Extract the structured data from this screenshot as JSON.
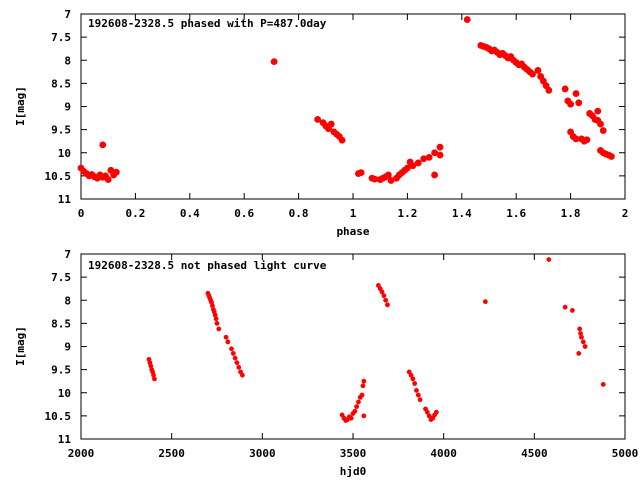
{
  "chart_data": [
    {
      "type": "scatter",
      "title": "192608-2328.5 phased with P=487.0day",
      "xlabel": "phase",
      "ylabel": "I[mag]",
      "xlim": [
        0,
        2
      ],
      "ylim": [
        11,
        7
      ],
      "y_inverted": true,
      "xticks": [
        "0",
        "0.2",
        "0.4",
        "0.6",
        "0.8",
        "1",
        "1.2",
        "1.4",
        "1.6",
        "1.8",
        "2"
      ],
      "yticks": [
        "7",
        "7.5",
        "8",
        "8.5",
        "9",
        "9.5",
        "10",
        "10.5",
        "11"
      ],
      "grid": false,
      "legend": "none",
      "marker_color": "#ff0000",
      "series": [
        {
          "points": [
            [
              0.0,
              10.33
            ],
            [
              0.01,
              10.4
            ],
            [
              0.02,
              10.45
            ],
            [
              0.03,
              10.5
            ],
            [
              0.04,
              10.47
            ],
            [
              0.05,
              10.52
            ],
            [
              0.06,
              10.55
            ],
            [
              0.07,
              10.48
            ],
            [
              0.08,
              10.53
            ],
            [
              0.09,
              10.5
            ],
            [
              0.08,
              9.83
            ],
            [
              0.1,
              10.58
            ],
            [
              0.11,
              10.38
            ],
            [
              0.12,
              10.48
            ],
            [
              0.13,
              10.42
            ],
            [
              0.71,
              8.03
            ],
            [
              0.87,
              9.28
            ],
            [
              0.89,
              9.35
            ],
            [
              0.9,
              9.42
            ],
            [
              0.91,
              9.48
            ],
            [
              0.92,
              9.38
            ],
            [
              0.93,
              9.55
            ],
            [
              0.94,
              9.6
            ],
            [
              0.95,
              9.65
            ],
            [
              0.96,
              9.73
            ],
            [
              1.02,
              10.45
            ],
            [
              1.03,
              10.43
            ],
            [
              1.07,
              10.55
            ],
            [
              1.08,
              10.57
            ],
            [
              1.1,
              10.58
            ],
            [
              1.11,
              10.55
            ],
            [
              1.12,
              10.52
            ],
            [
              1.13,
              10.48
            ],
            [
              1.14,
              10.6
            ],
            [
              1.16,
              10.55
            ],
            [
              1.17,
              10.48
            ],
            [
              1.18,
              10.43
            ],
            [
              1.19,
              10.38
            ],
            [
              1.2,
              10.33
            ],
            [
              1.21,
              10.2
            ],
            [
              1.22,
              10.28
            ],
            [
              1.24,
              10.22
            ],
            [
              1.26,
              10.13
            ],
            [
              1.28,
              10.1
            ],
            [
              1.3,
              10.0
            ],
            [
              1.3,
              10.48
            ],
            [
              1.32,
              9.88
            ],
            [
              1.32,
              10.05
            ],
            [
              1.42,
              7.12
            ],
            [
              1.47,
              7.68
            ],
            [
              1.48,
              7.7
            ],
            [
              1.49,
              7.72
            ],
            [
              1.5,
              7.75
            ],
            [
              1.51,
              7.8
            ],
            [
              1.52,
              7.78
            ],
            [
              1.53,
              7.83
            ],
            [
              1.54,
              7.88
            ],
            [
              1.55,
              7.85
            ],
            [
              1.56,
              7.9
            ],
            [
              1.57,
              7.95
            ],
            [
              1.58,
              7.92
            ],
            [
              1.59,
              8.0
            ],
            [
              1.6,
              8.05
            ],
            [
              1.61,
              8.1
            ],
            [
              1.62,
              8.08
            ],
            [
              1.63,
              8.15
            ],
            [
              1.64,
              8.2
            ],
            [
              1.65,
              8.25
            ],
            [
              1.66,
              8.3
            ],
            [
              1.68,
              8.22
            ],
            [
              1.69,
              8.35
            ],
            [
              1.7,
              8.45
            ],
            [
              1.71,
              8.55
            ],
            [
              1.72,
              8.65
            ],
            [
              1.78,
              8.62
            ],
            [
              1.79,
              8.88
            ],
            [
              1.8,
              8.95
            ],
            [
              1.8,
              9.55
            ],
            [
              1.81,
              9.65
            ],
            [
              1.82,
              8.72
            ],
            [
              1.82,
              9.7
            ],
            [
              1.83,
              8.92
            ],
            [
              1.84,
              9.7
            ],
            [
              1.85,
              9.75
            ],
            [
              1.86,
              9.72
            ],
            [
              1.87,
              9.15
            ],
            [
              1.88,
              9.2
            ],
            [
              1.89,
              9.28
            ],
            [
              1.9,
              9.3
            ],
            [
              1.91,
              9.38
            ],
            [
              1.91,
              9.95
            ],
            [
              1.92,
              10.0
            ],
            [
              1.93,
              10.03
            ],
            [
              1.94,
              10.05
            ],
            [
              1.95,
              10.08
            ],
            [
              1.92,
              9.52
            ],
            [
              1.9,
              9.1
            ]
          ]
        }
      ]
    },
    {
      "type": "scatter",
      "title": "192608-2328.5 not phased light curve",
      "xlabel": "hjd0",
      "ylabel": "I[mag]",
      "xlim": [
        2000,
        5000
      ],
      "ylim": [
        11,
        7
      ],
      "y_inverted": true,
      "xticks": [
        "2000",
        "2500",
        "3000",
        "3500",
        "4000",
        "4500",
        "5000"
      ],
      "yticks": [
        "7",
        "7.5",
        "8",
        "8.5",
        "9",
        "9.5",
        "10",
        "10.5",
        "11"
      ],
      "grid": false,
      "legend": "none",
      "marker_color": "#ff0000",
      "series": [
        {
          "points": [
            [
              2375,
              9.28
            ],
            [
              2380,
              9.35
            ],
            [
              2385,
              9.42
            ],
            [
              2390,
              9.5
            ],
            [
              2395,
              9.55
            ],
            [
              2400,
              9.62
            ],
            [
              2405,
              9.7
            ],
            [
              2700,
              7.85
            ],
            [
              2705,
              7.9
            ],
            [
              2710,
              7.95
            ],
            [
              2715,
              8.0
            ],
            [
              2720,
              8.05
            ],
            [
              2725,
              8.12
            ],
            [
              2730,
              8.2
            ],
            [
              2735,
              8.25
            ],
            [
              2740,
              8.32
            ],
            [
              2745,
              8.4
            ],
            [
              2750,
              8.5
            ],
            [
              2760,
              8.62
            ],
            [
              2800,
              8.8
            ],
            [
              2810,
              8.9
            ],
            [
              2830,
              9.05
            ],
            [
              2840,
              9.15
            ],
            [
              2850,
              9.25
            ],
            [
              2860,
              9.35
            ],
            [
              2870,
              9.45
            ],
            [
              2880,
              9.55
            ],
            [
              2890,
              9.62
            ],
            [
              3440,
              10.48
            ],
            [
              3450,
              10.55
            ],
            [
              3460,
              10.6
            ],
            [
              3470,
              10.58
            ],
            [
              3480,
              10.52
            ],
            [
              3490,
              10.55
            ],
            [
              3500,
              10.45
            ],
            [
              3510,
              10.4
            ],
            [
              3520,
              10.3
            ],
            [
              3530,
              10.2
            ],
            [
              3540,
              10.1
            ],
            [
              3550,
              10.05
            ],
            [
              3555,
              9.85
            ],
            [
              3560,
              9.75
            ],
            [
              3560,
              10.5
            ],
            [
              3640,
              7.68
            ],
            [
              3650,
              7.75
            ],
            [
              3660,
              7.82
            ],
            [
              3670,
              7.9
            ],
            [
              3680,
              8.0
            ],
            [
              3690,
              8.1
            ],
            [
              3810,
              9.55
            ],
            [
              3820,
              9.62
            ],
            [
              3830,
              9.7
            ],
            [
              3840,
              9.8
            ],
            [
              3850,
              9.95
            ],
            [
              3860,
              10.05
            ],
            [
              3870,
              10.15
            ],
            [
              3900,
              10.35
            ],
            [
              3910,
              10.42
            ],
            [
              3920,
              10.5
            ],
            [
              3930,
              10.58
            ],
            [
              3940,
              10.55
            ],
            [
              3950,
              10.48
            ],
            [
              3960,
              10.42
            ],
            [
              4230,
              8.03
            ],
            [
              4580,
              7.12
            ],
            [
              4670,
              8.15
            ],
            [
              4710,
              8.22
            ],
            [
              4750,
              8.62
            ],
            [
              4755,
              8.72
            ],
            [
              4760,
              8.8
            ],
            [
              4770,
              8.9
            ],
            [
              4780,
              9.0
            ],
            [
              4745,
              9.15
            ],
            [
              4880,
              9.82
            ]
          ]
        }
      ]
    }
  ]
}
